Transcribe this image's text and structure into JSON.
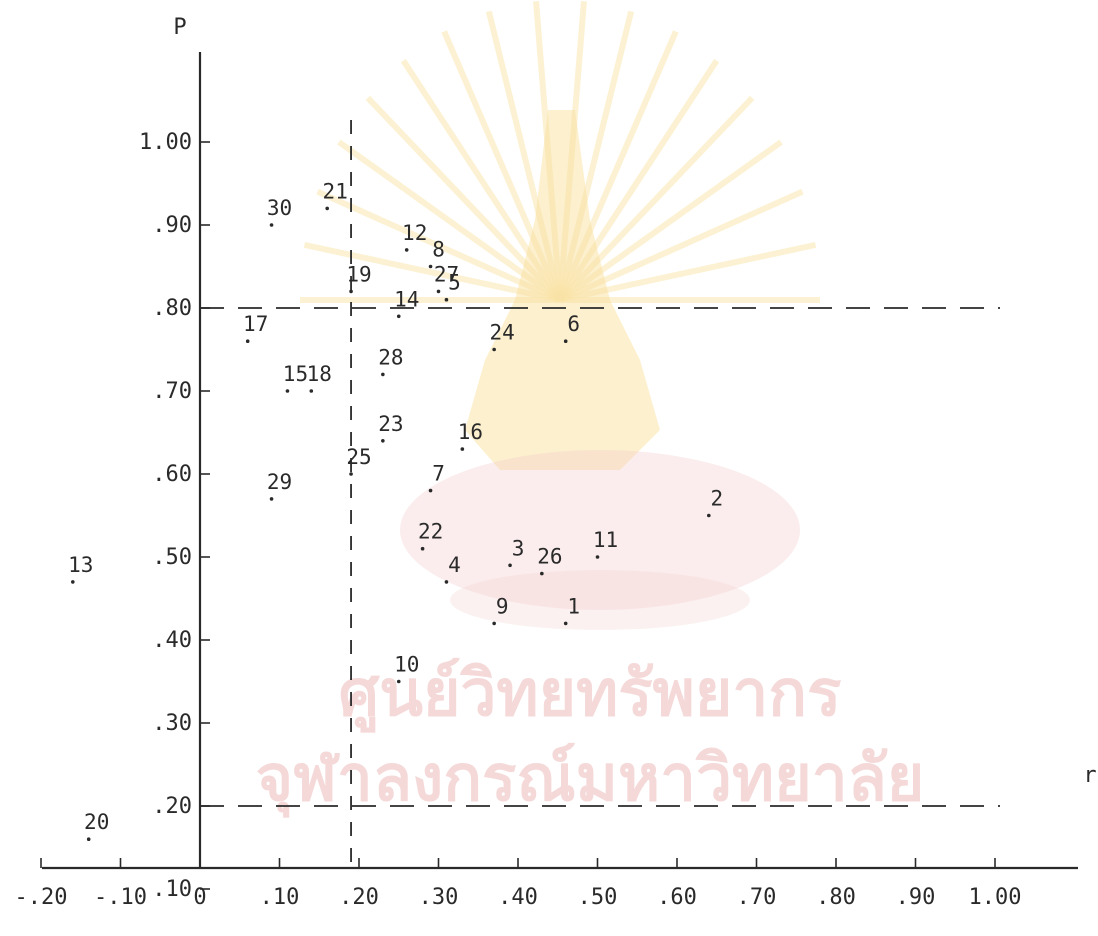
{
  "chart_data": {
    "type": "scatter",
    "ylabel": "P",
    "xlabel": "r",
    "xlim": [
      -0.2,
      1.0
    ],
    "ylim": [
      0.0,
      1.0
    ],
    "grid": false,
    "x_ticks": [
      -0.2,
      -0.1,
      0,
      0.1,
      0.2,
      0.3,
      0.4,
      0.5,
      0.6,
      0.7,
      0.8,
      0.9,
      1.0
    ],
    "x_tick_labels": [
      "-.20",
      "-.10",
      "0",
      ".10",
      ".20",
      ".30",
      ".40",
      ".50",
      ".60",
      ".70",
      ".80",
      ".90",
      "1.00"
    ],
    "y_ticks": [
      0.1,
      0.2,
      0.3,
      0.4,
      0.5,
      0.6,
      0.7,
      0.8,
      0.9,
      1.0
    ],
    "y_tick_labels": [
      ".10",
      ".20",
      ".30",
      ".40",
      ".50",
      ".60",
      ".70",
      ".80",
      ".90",
      "1.00"
    ],
    "reference_lines": {
      "vertical_x": [
        0.19
      ],
      "horizontal_y": [
        0.8,
        0.2
      ]
    },
    "points": [
      {
        "label": "1",
        "x": 0.46,
        "y": 0.42
      },
      {
        "label": "2",
        "x": 0.64,
        "y": 0.55
      },
      {
        "label": "3",
        "x": 0.39,
        "y": 0.49
      },
      {
        "label": "4",
        "x": 0.31,
        "y": 0.47
      },
      {
        "label": "5",
        "x": 0.31,
        "y": 0.81
      },
      {
        "label": "6",
        "x": 0.46,
        "y": 0.76
      },
      {
        "label": "7",
        "x": 0.29,
        "y": 0.58
      },
      {
        "label": "8",
        "x": 0.29,
        "y": 0.85
      },
      {
        "label": "9",
        "x": 0.37,
        "y": 0.42
      },
      {
        "label": "10",
        "x": 0.25,
        "y": 0.35
      },
      {
        "label": "11",
        "x": 0.5,
        "y": 0.5
      },
      {
        "label": "12",
        "x": 0.26,
        "y": 0.87
      },
      {
        "label": "13",
        "x": -0.16,
        "y": 0.47
      },
      {
        "label": "14",
        "x": 0.25,
        "y": 0.79
      },
      {
        "label": "15",
        "x": 0.11,
        "y": 0.7
      },
      {
        "label": "16",
        "x": 0.33,
        "y": 0.63
      },
      {
        "label": "17",
        "x": 0.06,
        "y": 0.76
      },
      {
        "label": "18",
        "x": 0.14,
        "y": 0.7
      },
      {
        "label": "19",
        "x": 0.19,
        "y": 0.82
      },
      {
        "label": "20",
        "x": -0.14,
        "y": 0.16
      },
      {
        "label": "21",
        "x": 0.16,
        "y": 0.92
      },
      {
        "label": "22",
        "x": 0.28,
        "y": 0.51
      },
      {
        "label": "23",
        "x": 0.23,
        "y": 0.64
      },
      {
        "label": "24",
        "x": 0.37,
        "y": 0.75
      },
      {
        "label": "25",
        "x": 0.19,
        "y": 0.6
      },
      {
        "label": "26",
        "x": 0.43,
        "y": 0.48
      },
      {
        "label": "27",
        "x": 0.3,
        "y": 0.82
      },
      {
        "label": "28",
        "x": 0.23,
        "y": 0.72
      },
      {
        "label": "29",
        "x": 0.09,
        "y": 0.57
      },
      {
        "label": "30",
        "x": 0.09,
        "y": 0.9
      }
    ]
  },
  "watermark": {
    "line1": "ศูนย์วิทยทรัพยากร",
    "line2": "จุฬาลงกรณ์มหาวิทยาลัย",
    "emblem_color": "#f3c13a",
    "emblem_accent": "#e58c8c",
    "text_color": "#f1c9c9"
  },
  "colors": {
    "ink": "#2a2a2a"
  }
}
